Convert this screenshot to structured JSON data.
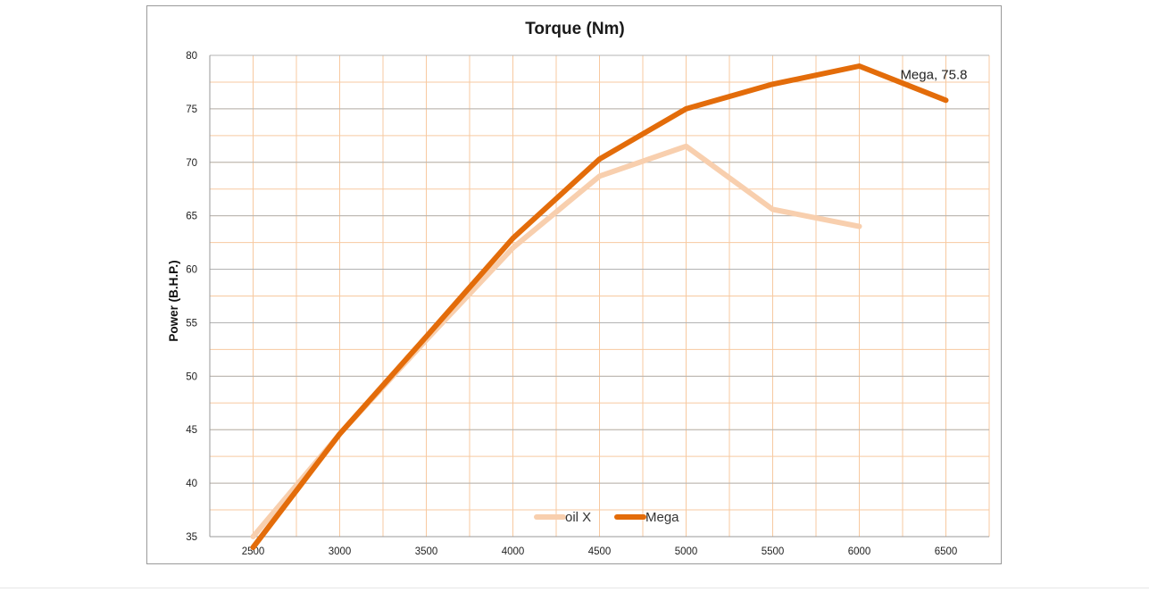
{
  "chart_data": {
    "type": "line",
    "title": "Torque (Nm)",
    "xlabel": "",
    "ylabel": "Power (B.H.P.)",
    "xlim": [
      2250,
      6750
    ],
    "ylim": [
      35,
      80
    ],
    "x_ticks": [
      2500,
      3000,
      3500,
      4000,
      4500,
      5000,
      5500,
      6000,
      6500
    ],
    "y_ticks": [
      35,
      40,
      45,
      50,
      55,
      60,
      65,
      70,
      75,
      80
    ],
    "grid": true,
    "legend_position": "bottom-center",
    "series": [
      {
        "name": "oil X",
        "color": "#f8cfae",
        "points": [
          [
            2500,
            35
          ],
          [
            3000,
            44.6
          ],
          [
            3500,
            53.4
          ],
          [
            4000,
            62.0
          ],
          [
            4500,
            68.7
          ],
          [
            5000,
            71.5
          ],
          [
            5500,
            65.6
          ],
          [
            6000,
            64.0
          ]
        ]
      },
      {
        "name": "Mega",
        "color": "#e36c0a",
        "points": [
          [
            2500,
            34
          ],
          [
            3000,
            44.6
          ],
          [
            3500,
            53.7
          ],
          [
            4000,
            62.9
          ],
          [
            4500,
            70.3
          ],
          [
            5000,
            75.0
          ],
          [
            5500,
            77.3
          ],
          [
            6000,
            79.0
          ],
          [
            6500,
            75.8
          ]
        ]
      }
    ],
    "annotations": [
      {
        "text": "Mega, 75.8",
        "series": "Mega",
        "x": 6500,
        "y": 75.8
      }
    ]
  }
}
